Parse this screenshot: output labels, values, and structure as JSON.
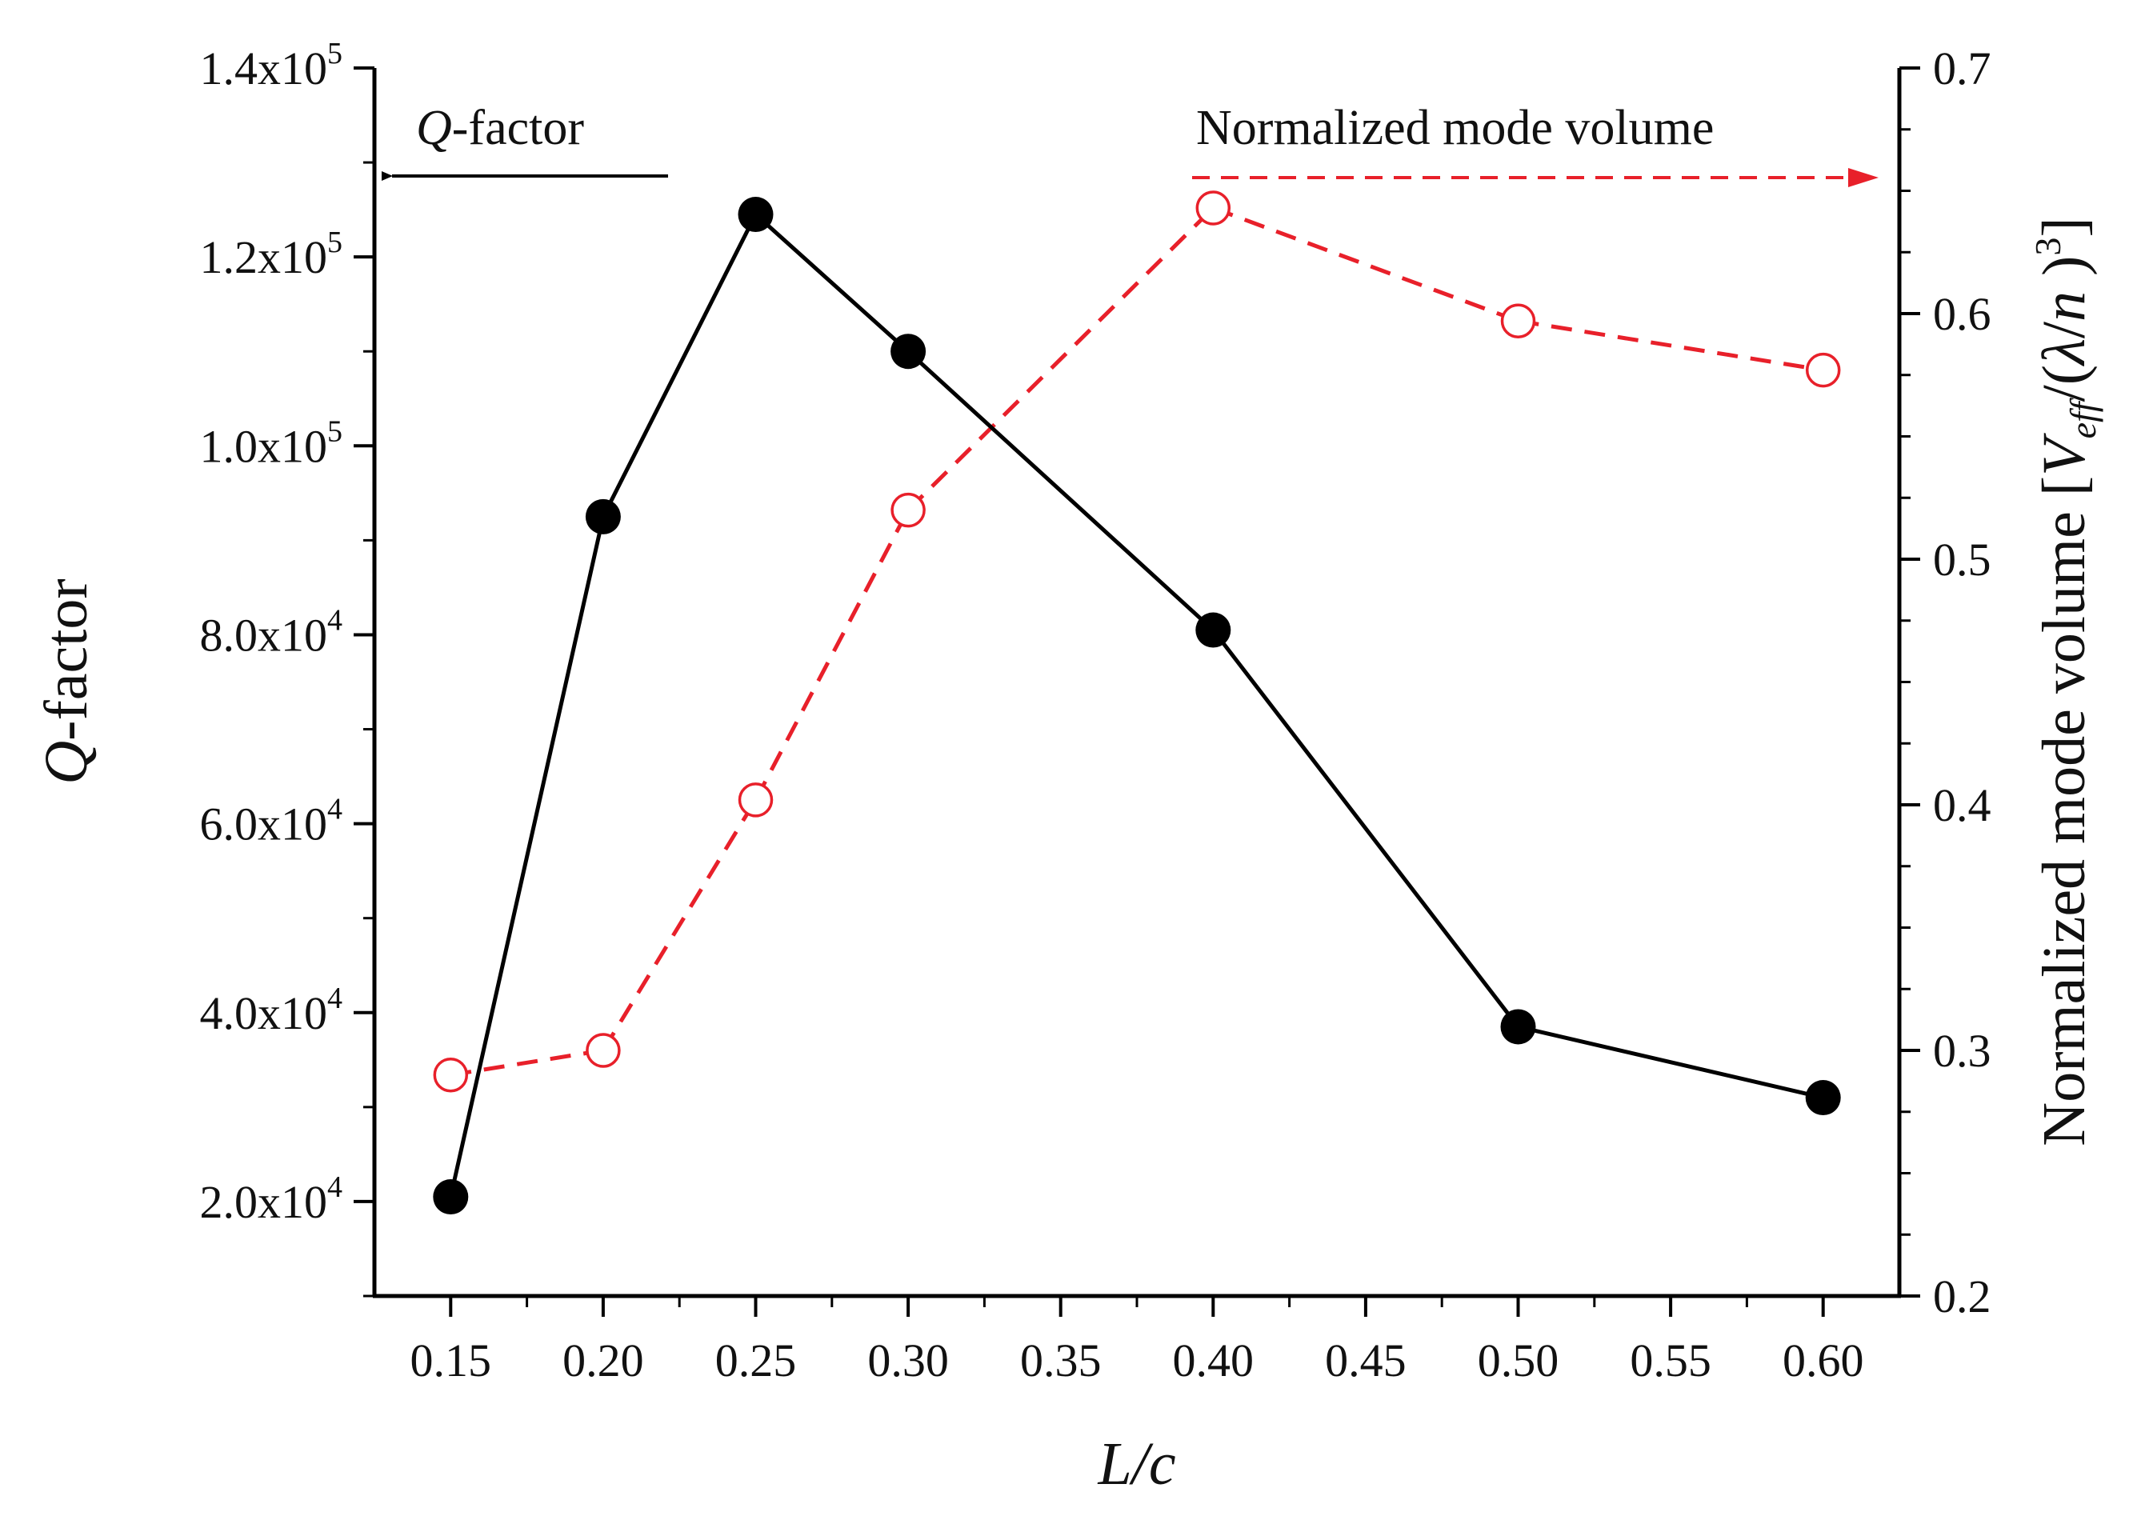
{
  "chart_data": {
    "type": "line",
    "title": "",
    "xlabel": "L/c",
    "ylabel_left": "Q-factor",
    "ylabel_right": "Normalized mode volume [V_eff/(λ/n)^3]",
    "ylabel_right_parts": {
      "prefix": "Normalized mode volume [",
      "v": "V",
      "sub": "eff",
      "mid": "/(",
      "lambda": "λ",
      "slash": "/",
      "n": "n",
      "close_paren": " )",
      "sup": "3",
      "close_bracket": "]"
    },
    "xlim": [
      0.125,
      0.625
    ],
    "x_ticks": [
      "0.15",
      "0.20",
      "0.25",
      "0.30",
      "0.35",
      "0.40",
      "0.45",
      "0.50",
      "0.55",
      "0.60"
    ],
    "x_tick_values": [
      0.15,
      0.2,
      0.25,
      0.3,
      0.35,
      0.4,
      0.45,
      0.5,
      0.55,
      0.6
    ],
    "ylim_left": [
      10000,
      140000
    ],
    "y_left_ticks": [
      {
        "value": 20000,
        "mantissa": "2.0x10",
        "exp": "4"
      },
      {
        "value": 40000,
        "mantissa": "4.0x10",
        "exp": "4"
      },
      {
        "value": 60000,
        "mantissa": "6.0x10",
        "exp": "4"
      },
      {
        "value": 80000,
        "mantissa": "8.0x10",
        "exp": "4"
      },
      {
        "value": 100000,
        "mantissa": "1.0x10",
        "exp": "5"
      },
      {
        "value": 120000,
        "mantissa": "1.2x10",
        "exp": "5"
      },
      {
        "value": 140000,
        "mantissa": "1.4x10",
        "exp": "5"
      }
    ],
    "ylim_right": [
      0.2,
      0.7
    ],
    "y_right_ticks": [
      "0.2",
      "0.3",
      "0.4",
      "0.5",
      "0.6",
      "0.7"
    ],
    "y_right_tick_values": [
      0.2,
      0.3,
      0.4,
      0.5,
      0.6,
      0.7
    ],
    "series": [
      {
        "name": "Q-factor",
        "axis": "left",
        "color": "#000000",
        "style": "solid",
        "marker": "filled-circle",
        "x": [
          0.15,
          0.2,
          0.25,
          0.3,
          0.4,
          0.5,
          0.6
        ],
        "values": [
          20500,
          92500,
          124500,
          110000,
          80500,
          38500,
          31000
        ]
      },
      {
        "name": "Normalized mode volume",
        "axis": "right",
        "color": "#e8202a",
        "style": "dashed",
        "marker": "open-circle",
        "x": [
          0.15,
          0.2,
          0.25,
          0.3,
          0.4,
          0.5,
          0.6
        ],
        "values": [
          0.29,
          0.3,
          0.402,
          0.52,
          0.643,
          0.597,
          0.577
        ]
      }
    ],
    "annotations": {
      "left_arrow_label_italic": "Q",
      "left_arrow_label_rest": "-factor",
      "right_arrow_label": "Normalized mode volume"
    }
  }
}
